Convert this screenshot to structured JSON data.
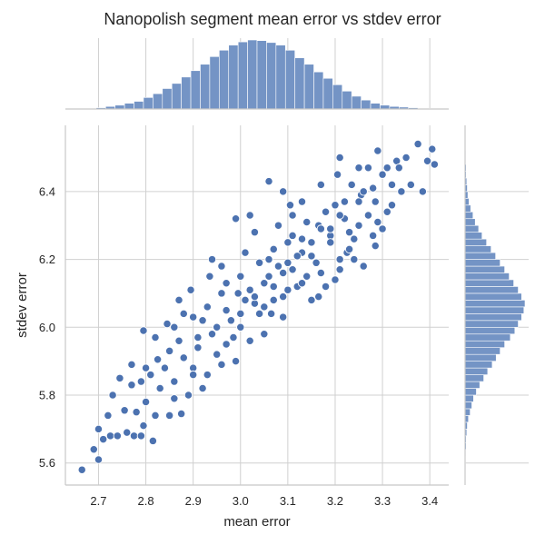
{
  "chart_data": {
    "type": "scatter",
    "title": "Nanopolish segment mean error vs stdev error",
    "xlabel": "mean error",
    "ylabel": "stdev error",
    "xlim": [
      2.63,
      3.44
    ],
    "ylim": [
      5.535,
      6.595
    ],
    "x_ticks": [
      2.7,
      2.8,
      2.9,
      3.0,
      3.1,
      3.2,
      3.3,
      3.4
    ],
    "y_ticks": [
      5.6,
      5.8,
      6.0,
      6.2,
      6.4
    ],
    "x_tick_labels": [
      "2.7",
      "2.8",
      "2.9",
      "3.0",
      "3.1",
      "3.2",
      "3.3",
      "3.4"
    ],
    "y_tick_labels": [
      "5.6",
      "5.8",
      "6.0",
      "6.2",
      "6.4"
    ],
    "grid": true,
    "marginals": "histogram",
    "point_color": "#4c72b0",
    "hist_color": "#7494c5",
    "series": [
      {
        "points": [
          [
            2.665,
            5.58
          ],
          [
            2.7,
            5.61
          ],
          [
            2.69,
            5.64
          ],
          [
            2.71,
            5.67
          ],
          [
            2.725,
            5.68
          ],
          [
            2.7,
            5.7
          ],
          [
            2.74,
            5.68
          ],
          [
            2.76,
            5.69
          ],
          [
            2.775,
            5.68
          ],
          [
            2.79,
            5.68
          ],
          [
            2.815,
            5.665
          ],
          [
            2.795,
            5.71
          ],
          [
            2.72,
            5.74
          ],
          [
            2.755,
            5.755
          ],
          [
            2.78,
            5.75
          ],
          [
            2.82,
            5.74
          ],
          [
            2.85,
            5.74
          ],
          [
            2.875,
            5.745
          ],
          [
            2.73,
            5.8
          ],
          [
            2.745,
            5.85
          ],
          [
            2.77,
            5.83
          ],
          [
            2.79,
            5.84
          ],
          [
            2.8,
            5.78
          ],
          [
            2.83,
            5.82
          ],
          [
            2.86,
            5.79
          ],
          [
            2.89,
            5.8
          ],
          [
            2.92,
            5.82
          ],
          [
            2.77,
            5.89
          ],
          [
            2.8,
            5.88
          ],
          [
            2.825,
            5.905
          ],
          [
            2.795,
            5.99
          ],
          [
            2.82,
            5.97
          ],
          [
            2.85,
            5.93
          ],
          [
            2.87,
            5.96
          ],
          [
            2.9,
            5.88
          ],
          [
            2.93,
            5.86
          ],
          [
            2.96,
            5.89
          ],
          [
            2.99,
            5.9
          ],
          [
            2.845,
            6.01
          ],
          [
            2.87,
            6.08
          ],
          [
            2.895,
            6.11
          ],
          [
            2.9,
            6.03
          ],
          [
            2.93,
            6.06
          ],
          [
            2.95,
            6.0
          ],
          [
            2.985,
            5.97
          ],
          [
            3.02,
            5.96
          ],
          [
            3.05,
            5.98
          ],
          [
            2.935,
            6.15
          ],
          [
            2.96,
            6.18
          ],
          [
            2.97,
            6.13
          ],
          [
            2.995,
            6.1
          ],
          [
            3.03,
            6.07
          ],
          [
            3.065,
            6.04
          ],
          [
            3.09,
            6.03
          ],
          [
            3.01,
            6.22
          ],
          [
            3.03,
            6.28
          ],
          [
            3.06,
            6.2
          ],
          [
            3.09,
            6.16
          ],
          [
            3.12,
            6.12
          ],
          [
            3.15,
            6.08
          ],
          [
            3.08,
            6.3
          ],
          [
            3.1,
            6.25
          ],
          [
            3.13,
            6.22
          ],
          [
            3.16,
            6.19
          ],
          [
            3.2,
            6.14
          ],
          [
            3.11,
            6.33
          ],
          [
            3.13,
            6.37
          ],
          [
            3.165,
            6.3
          ],
          [
            3.19,
            6.27
          ],
          [
            3.225,
            6.22
          ],
          [
            3.26,
            6.18
          ],
          [
            3.17,
            6.42
          ],
          [
            3.2,
            6.36
          ],
          [
            3.22,
            6.32
          ],
          [
            3.25,
            6.3
          ],
          [
            3.28,
            6.27
          ],
          [
            3.205,
            6.45
          ],
          [
            3.235,
            6.42
          ],
          [
            3.255,
            6.39
          ],
          [
            3.285,
            6.37
          ],
          [
            3.31,
            6.34
          ],
          [
            3.27,
            6.47
          ],
          [
            3.3,
            6.45
          ],
          [
            3.32,
            6.42
          ],
          [
            3.34,
            6.4
          ],
          [
            3.36,
            6.42
          ],
          [
            3.385,
            6.4
          ],
          [
            3.21,
            6.5
          ],
          [
            3.25,
            6.47
          ],
          [
            3.29,
            6.52
          ],
          [
            3.33,
            6.49
          ],
          [
            3.31,
            6.47
          ],
          [
            3.335,
            6.47
          ],
          [
            3.35,
            6.5
          ],
          [
            3.375,
            6.54
          ],
          [
            3.405,
            6.525
          ],
          [
            3.41,
            6.48
          ],
          [
            3.395,
            6.49
          ],
          [
            3.3,
            6.29
          ],
          [
            3.285,
            6.24
          ],
          [
            3.24,
            6.2
          ],
          [
            3.23,
            6.23
          ],
          [
            3.18,
            6.12
          ],
          [
            3.165,
            6.09
          ],
          [
            3.21,
            6.17
          ],
          [
            3.06,
            6.43
          ],
          [
            3.09,
            6.4
          ],
          [
            3.105,
            6.36
          ],
          [
            2.99,
            6.32
          ],
          [
            2.94,
            6.2
          ],
          [
            3.02,
            6.33
          ],
          [
            2.86,
            6.0
          ],
          [
            2.88,
            6.04
          ],
          [
            2.91,
            5.97
          ],
          [
            2.95,
            5.92
          ],
          [
            3.0,
            6.0
          ],
          [
            3.04,
            6.04
          ],
          [
            3.07,
            6.08
          ],
          [
            3.1,
            6.11
          ],
          [
            3.14,
            6.15
          ],
          [
            3.0,
            6.15
          ],
          [
            3.04,
            6.19
          ],
          [
            3.07,
            6.23
          ],
          [
            3.11,
            6.27
          ],
          [
            3.14,
            6.31
          ],
          [
            3.18,
            6.34
          ],
          [
            2.96,
            6.1
          ],
          [
            3.02,
            6.11
          ],
          [
            3.05,
            6.13
          ],
          [
            3.08,
            6.18
          ],
          [
            3.12,
            6.21
          ],
          [
            3.15,
            6.25
          ],
          [
            3.19,
            6.29
          ],
          [
            3.22,
            6.37
          ],
          [
            3.26,
            6.4
          ],
          [
            2.92,
            6.02
          ],
          [
            2.97,
            6.05
          ],
          [
            3.01,
            6.08
          ],
          [
            3.06,
            6.15
          ],
          [
            3.1,
            6.19
          ],
          [
            3.13,
            6.26
          ],
          [
            3.17,
            6.29
          ],
          [
            3.21,
            6.33
          ],
          [
            3.25,
            6.37
          ],
          [
            3.28,
            6.41
          ],
          [
            2.84,
            5.88
          ],
          [
            2.88,
            5.91
          ],
          [
            2.91,
            5.94
          ],
          [
            2.94,
            5.98
          ],
          [
            2.98,
            6.02
          ],
          [
            3.03,
            6.09
          ],
          [
            3.07,
            6.12
          ],
          [
            3.11,
            6.17
          ],
          [
            3.15,
            6.21
          ],
          [
            3.19,
            6.25
          ],
          [
            3.23,
            6.28
          ],
          [
            3.27,
            6.33
          ],
          [
            2.81,
            5.86
          ],
          [
            2.86,
            5.84
          ],
          [
            2.9,
            5.86
          ],
          [
            2.97,
            5.95
          ],
          [
            3.0,
            6.04
          ],
          [
            3.05,
            6.06
          ],
          [
            3.09,
            6.09
          ],
          [
            3.13,
            6.13
          ],
          [
            3.17,
            6.16
          ],
          [
            3.21,
            6.2
          ],
          [
            3.24,
            6.26
          ],
          [
            3.29,
            6.31
          ],
          [
            3.32,
            6.36
          ]
        ]
      }
    ],
    "marginal_x": {
      "bin_edges": [
        2.655,
        2.675,
        2.695,
        2.715,
        2.735,
        2.755,
        2.775,
        2.795,
        2.815,
        2.835,
        2.855,
        2.875,
        2.895,
        2.915,
        2.935,
        2.955,
        2.975,
        2.995,
        3.015,
        3.035,
        3.055,
        3.075,
        3.095,
        3.115,
        3.135,
        3.155,
        3.175,
        3.195,
        3.215,
        3.235,
        3.255,
        3.275,
        3.295,
        3.315,
        3.335,
        3.355,
        3.375,
        3.395,
        3.415
      ],
      "counts": [
        1,
        1,
        2,
        4,
        6,
        9,
        12,
        18,
        24,
        32,
        40,
        50,
        60,
        70,
        82,
        92,
        100,
        105,
        108,
        107,
        104,
        100,
        92,
        80,
        70,
        58,
        48,
        38,
        28,
        20,
        14,
        9,
        6,
        4,
        3,
        2,
        1,
        1
      ]
    },
    "marginal_y": {
      "bin_edges": [
        5.56,
        5.58,
        5.6,
        5.62,
        5.64,
        5.66,
        5.68,
        5.7,
        5.72,
        5.74,
        5.76,
        5.78,
        5.8,
        5.82,
        5.84,
        5.86,
        5.88,
        5.9,
        5.92,
        5.94,
        5.96,
        5.98,
        6.0,
        6.02,
        6.04,
        6.06,
        6.08,
        6.1,
        6.12,
        6.14,
        6.16,
        6.18,
        6.2,
        6.22,
        6.24,
        6.26,
        6.28,
        6.3,
        6.32,
        6.34,
        6.36,
        6.38,
        6.4,
        6.42,
        6.44,
        6.46,
        6.48,
        6.5,
        6.52
      ],
      "counts": [
        0,
        1,
        0,
        1,
        2,
        2,
        3,
        4,
        6,
        9,
        12,
        15,
        20,
        26,
        33,
        40,
        48,
        55,
        62,
        70,
        80,
        88,
        94,
        100,
        104,
        106,
        100,
        94,
        86,
        78,
        70,
        62,
        54,
        46,
        38,
        30,
        24,
        18,
        14,
        10,
        7,
        5,
        4,
        3,
        2,
        2,
        1,
        1
      ]
    }
  }
}
